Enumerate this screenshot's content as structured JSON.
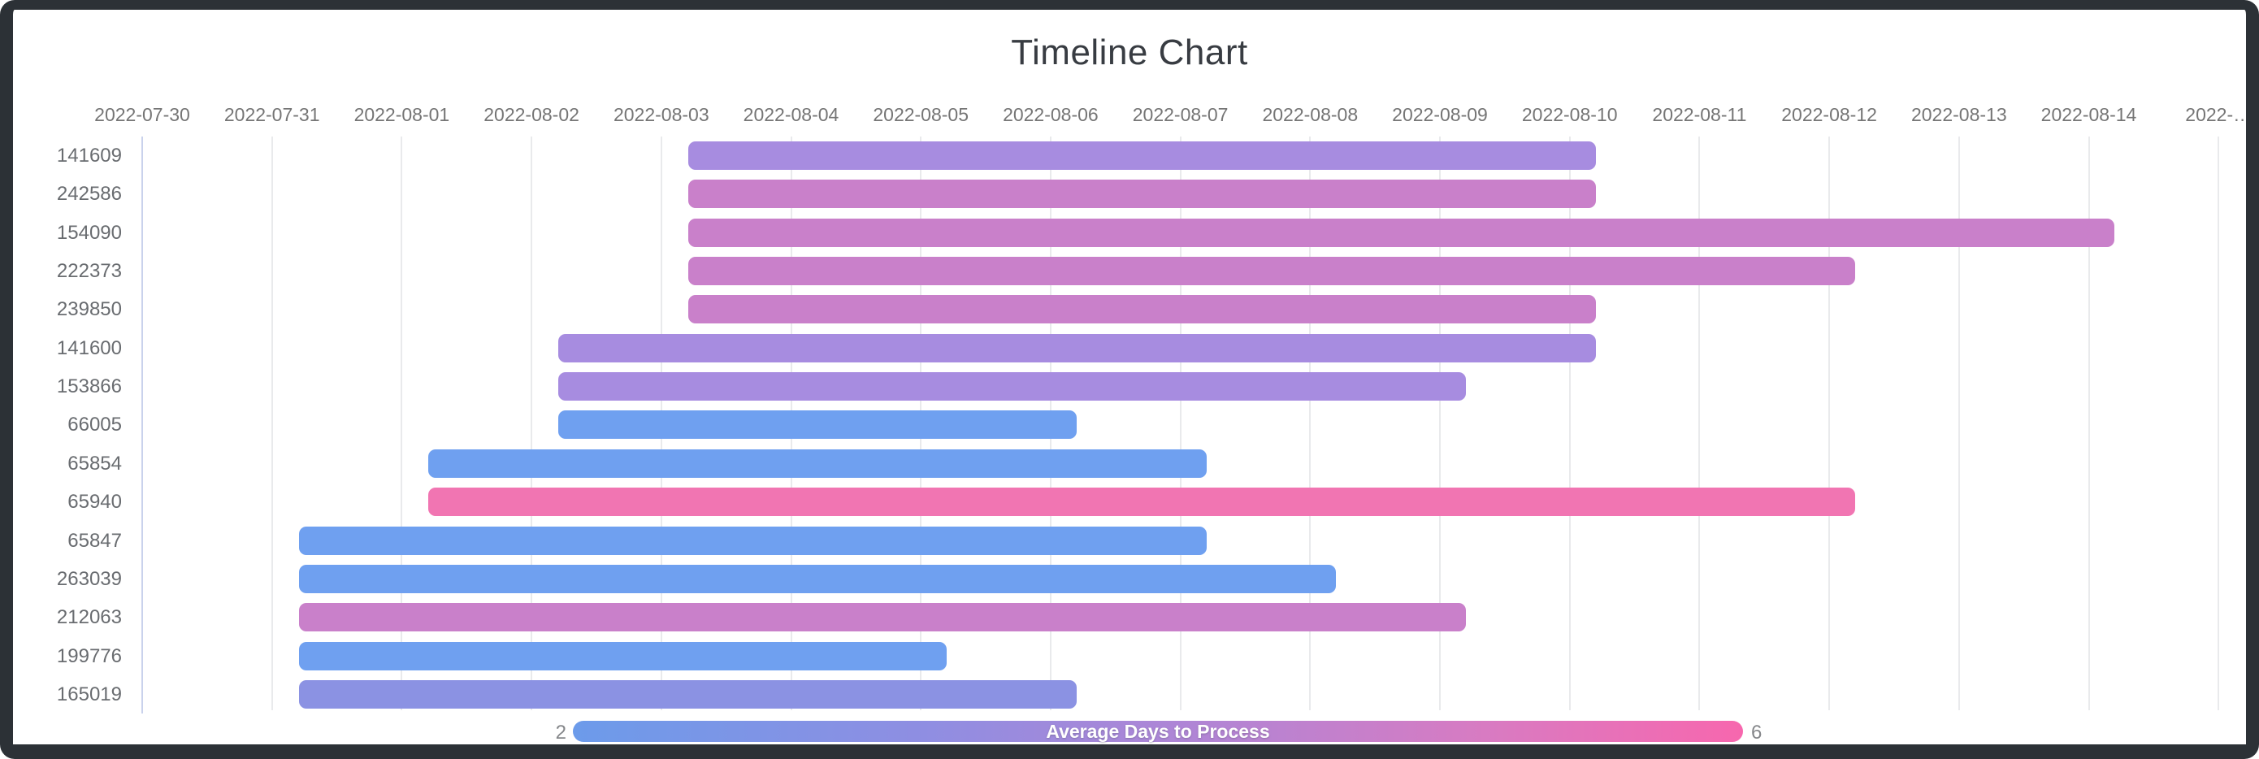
{
  "window": {
    "frame_color": "#2c3136",
    "background_color": "#ffffff"
  },
  "title": "Timeline Chart",
  "chart_data": {
    "type": "timeline",
    "title": "Timeline Chart",
    "x_axis": {
      "tick_labels": [
        "2022-07-30",
        "2022-07-31",
        "2022-08-01",
        "2022-08-02",
        "2022-08-03",
        "2022-08-04",
        "2022-08-05",
        "2022-08-06",
        "2022-08-07",
        "2022-08-08",
        "2022-08-09",
        "2022-08-10",
        "2022-08-11",
        "2022-08-12",
        "2022-08-13",
        "2022-08-14",
        "2022-…"
      ],
      "grid": true,
      "range_start": "2022-07-30",
      "range_end_visible": "2022-08-14"
    },
    "y_axis": {
      "categories": [
        "141609",
        "242586",
        "154090",
        "222373",
        "239850",
        "141600",
        "153866",
        "66005",
        "65854",
        "65940",
        "65847",
        "263039",
        "212063",
        "199776",
        "165019"
      ]
    },
    "rows": [
      {
        "id": "141609",
        "start": "2022-08-03",
        "end": "2022-08-10",
        "duration_days": 7,
        "avg_days_to_process": 4,
        "color": "#a78ce0"
      },
      {
        "id": "242586",
        "start": "2022-08-03",
        "end": "2022-08-10",
        "duration_days": 7,
        "avg_days_to_process": 5,
        "color": "#c980ca"
      },
      {
        "id": "154090",
        "start": "2022-08-03",
        "end": "2022-08-14",
        "duration_days": 11,
        "avg_days_to_process": 5,
        "color": "#c980ca"
      },
      {
        "id": "222373",
        "start": "2022-08-03",
        "end": "2022-08-12",
        "duration_days": 9,
        "avg_days_to_process": 5,
        "color": "#c980ca"
      },
      {
        "id": "239850",
        "start": "2022-08-03",
        "end": "2022-08-10",
        "duration_days": 7,
        "avg_days_to_process": 5,
        "color": "#c980ca"
      },
      {
        "id": "141600",
        "start": "2022-08-02",
        "end": "2022-08-10",
        "duration_days": 8,
        "avg_days_to_process": 4,
        "color": "#a78ce0"
      },
      {
        "id": "153866",
        "start": "2022-08-02",
        "end": "2022-08-09",
        "duration_days": 7,
        "avg_days_to_process": 4,
        "color": "#a78ce0"
      },
      {
        "id": "66005",
        "start": "2022-08-02",
        "end": "2022-08-06",
        "duration_days": 4,
        "avg_days_to_process": 2,
        "color": "#6fa0f0"
      },
      {
        "id": "65854",
        "start": "2022-08-01",
        "end": "2022-08-07",
        "duration_days": 6,
        "avg_days_to_process": 2,
        "color": "#6fa0f0"
      },
      {
        "id": "65940",
        "start": "2022-08-01",
        "end": "2022-08-12",
        "duration_days": 11,
        "avg_days_to_process": 6,
        "color": "#f175b2"
      },
      {
        "id": "65847",
        "start": "2022-07-31",
        "end": "2022-08-07",
        "duration_days": 7,
        "avg_days_to_process": 2,
        "color": "#6fa0f0"
      },
      {
        "id": "263039",
        "start": "2022-07-31",
        "end": "2022-08-08",
        "duration_days": 8,
        "avg_days_to_process": 2,
        "color": "#6fa0f0"
      },
      {
        "id": "212063",
        "start": "2022-07-31",
        "end": "2022-08-09",
        "duration_days": 9,
        "avg_days_to_process": 5,
        "color": "#c980ca"
      },
      {
        "id": "199776",
        "start": "2022-07-31",
        "end": "2022-08-05",
        "duration_days": 5,
        "avg_days_to_process": 2,
        "color": "#6fa0f0"
      },
      {
        "id": "165019",
        "start": "2022-07-31",
        "end": "2022-08-06",
        "duration_days": 6,
        "avg_days_to_process": 3,
        "color": "#8b92e3"
      }
    ],
    "legend": {
      "label": "Average Days to Process",
      "min": "2",
      "max": "6",
      "gradient": [
        "#6c9bea",
        "#8f8ee2",
        "#b384d4",
        "#f767ae"
      ],
      "position": "bottom"
    }
  }
}
